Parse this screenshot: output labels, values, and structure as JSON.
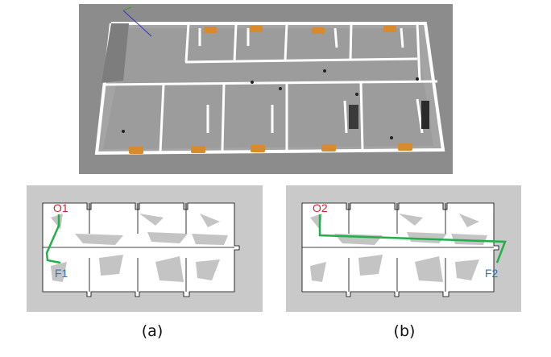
{
  "figure": {
    "sim_view": {
      "description_icon": "3d-office-floorplan",
      "colors": {
        "background": "#8a8a8a",
        "floor": "#9a9a9a",
        "wall": "#ffffff",
        "desk": "#d98a2b"
      }
    },
    "map_a": {
      "origin_label": "O1",
      "goal_label": "F1",
      "caption": "(a)",
      "path_color": "#22b04a",
      "origin_color": "#e0202a",
      "goal_color": "#2e74c0"
    },
    "map_b": {
      "origin_label": "O2",
      "goal_label": "F2",
      "caption": "(b)",
      "path_color": "#22b04a",
      "origin_color": "#e0202a",
      "goal_color": "#2e74c0"
    }
  }
}
